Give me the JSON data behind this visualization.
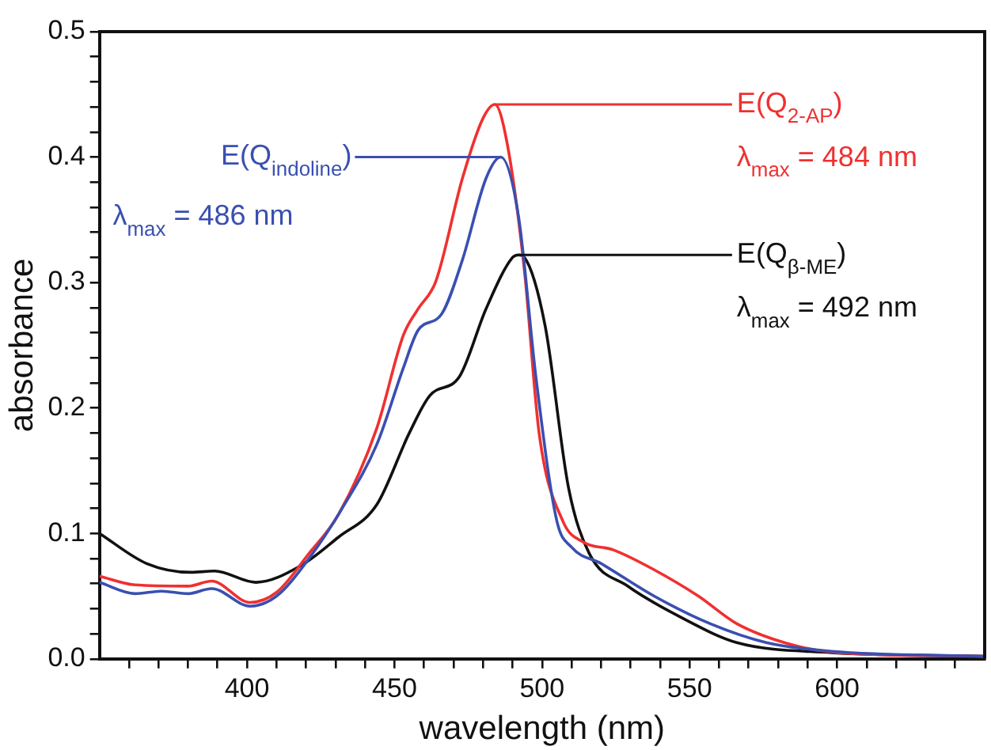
{
  "chart_data": {
    "type": "line",
    "xlabel": "wavelength (nm)",
    "ylabel": "absorbance",
    "xlim": [
      350,
      650
    ],
    "ylim": [
      0,
      0.5
    ],
    "xticks": [
      {
        "value": 360,
        "label": null
      },
      {
        "value": 370,
        "label": null
      },
      {
        "value": 380,
        "label": null
      },
      {
        "value": 390,
        "label": null
      },
      400,
      {
        "value": 410,
        "label": null
      },
      {
        "value": 420,
        "label": null
      },
      {
        "value": 430,
        "label": null
      },
      {
        "value": 440,
        "label": null
      },
      450,
      {
        "value": 460,
        "label": null
      },
      {
        "value": 470,
        "label": null
      },
      {
        "value": 480,
        "label": null
      },
      {
        "value": 490,
        "label": null
      },
      500,
      {
        "value": 510,
        "label": null
      },
      {
        "value": 520,
        "label": null
      },
      {
        "value": 530,
        "label": null
      },
      {
        "value": 540,
        "label": null
      },
      550,
      {
        "value": 560,
        "label": null
      },
      {
        "value": 570,
        "label": null
      },
      {
        "value": 580,
        "label": null
      },
      {
        "value": 590,
        "label": null
      },
      600,
      {
        "value": 610,
        "label": null
      },
      {
        "value": 620,
        "label": null
      },
      {
        "value": 630,
        "label": null
      },
      {
        "value": 640,
        "label": null
      }
    ],
    "yticks": [
      {
        "value": 0,
        "label": "0.0"
      },
      {
        "value": 0.02,
        "label": null
      },
      {
        "value": 0.04,
        "label": null
      },
      {
        "value": 0.06,
        "label": null
      },
      {
        "value": 0.08,
        "label": null
      },
      0.1,
      {
        "value": 0.12,
        "label": null
      },
      {
        "value": 0.14,
        "label": null
      },
      {
        "value": 0.16,
        "label": null
      },
      {
        "value": 0.18,
        "label": null
      },
      0.2,
      {
        "value": 0.22,
        "label": null
      },
      {
        "value": 0.24,
        "label": null
      },
      {
        "value": 0.26,
        "label": null
      },
      {
        "value": 0.28,
        "label": null
      },
      0.3,
      {
        "value": 0.32,
        "label": null
      },
      {
        "value": 0.34,
        "label": null
      },
      {
        "value": 0.36,
        "label": null
      },
      {
        "value": 0.38,
        "label": null
      },
      0.4,
      {
        "value": 0.42,
        "label": null
      },
      {
        "value": 0.44,
        "label": null
      },
      {
        "value": 0.46,
        "label": null
      },
      {
        "value": 0.48,
        "label": null
      },
      0.5
    ],
    "grid": false,
    "legend": false,
    "marker": "none",
    "line_style": "solid",
    "series": [
      {
        "name": "E(Q$_{indoline}$)",
        "color": "#3a4fb0",
        "x": [
          350,
          362,
          371,
          380,
          388,
          401,
          410,
          421,
          432,
          444,
          453,
          458,
          466,
          473,
          481,
          486,
          492,
          498,
          505,
          510,
          520,
          538,
          557,
          576,
          598,
          650
        ],
        "values": [
          0.061,
          0.052,
          0.054,
          0.052,
          0.056,
          0.042,
          0.05,
          0.08,
          0.119,
          0.171,
          0.232,
          0.262,
          0.275,
          0.318,
          0.383,
          0.4,
          0.353,
          0.223,
          0.11,
          0.089,
          0.076,
          0.05,
          0.028,
          0.013,
          0.006,
          0.002
        ]
      },
      {
        "name": "E(Q$_{2-AP}$)",
        "color": "#f03030",
        "x": [
          350,
          362,
          380,
          388,
          401,
          410,
          421,
          431,
          444,
          453,
          458,
          464,
          473,
          480,
          484,
          488,
          494,
          499,
          507,
          514,
          524,
          538,
          553,
          566,
          585,
          600,
          650
        ],
        "values": [
          0.066,
          0.059,
          0.058,
          0.062,
          0.045,
          0.053,
          0.084,
          0.115,
          0.184,
          0.258,
          0.279,
          0.301,
          0.383,
          0.431,
          0.442,
          0.413,
          0.31,
          0.18,
          0.11,
          0.093,
          0.087,
          0.071,
          0.05,
          0.028,
          0.011,
          0.005,
          0.002
        ]
      },
      {
        "name": "E(Q$_{β-ME}$)",
        "color": "#111111",
        "x": [
          350,
          366,
          381,
          389,
          403,
          418,
          431,
          444,
          455,
          462,
          472,
          481,
          490,
          492,
          494,
          501,
          509,
          516,
          529,
          548,
          566,
          598,
          650
        ],
        "values": [
          0.1,
          0.076,
          0.069,
          0.07,
          0.061,
          0.074,
          0.097,
          0.123,
          0.18,
          0.21,
          0.225,
          0.279,
          0.32,
          0.322,
          0.32,
          0.266,
          0.136,
          0.084,
          0.058,
          0.032,
          0.013,
          0.005,
          0.002
        ]
      }
    ],
    "annotations": [
      "λ$_{max}$ = 486 nm",
      {
        "text": "λ$_{max}$ = 484 nm",
        "x": 484,
        "y": 0.442
      },
      {
        "text": "λ$_{max}$ = 492 nm",
        "x": 492,
        "y": 0.322
      }
    ]
  }
}
